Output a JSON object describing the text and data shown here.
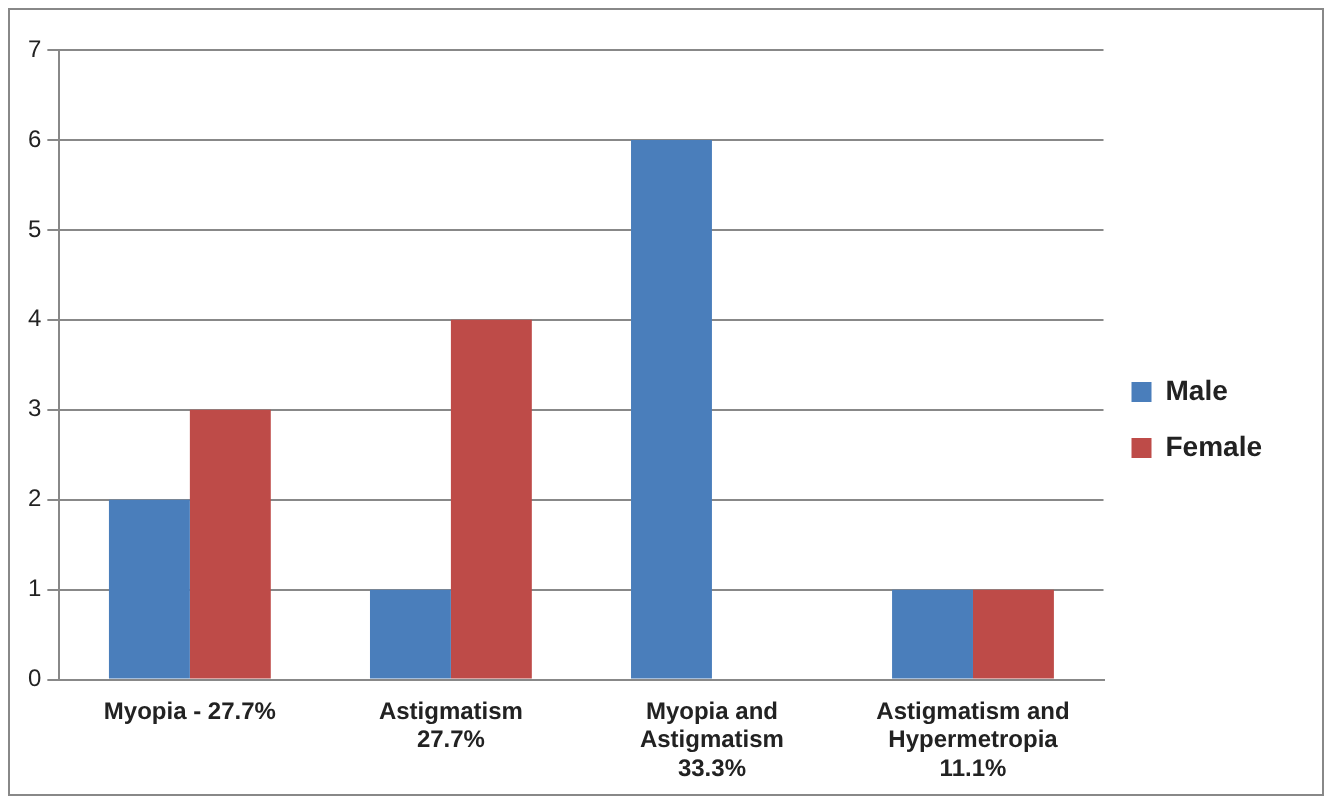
{
  "chart_data": {
    "type": "bar",
    "categories": [
      "Myopia - 27.7%",
      "Astigmatism\n27.7%",
      "Myopia and\nAstigmatism\n33.3%",
      "Astigmatism and\nHypermetropia\n11.1%"
    ],
    "series": [
      {
        "name": "Male",
        "color": "#4a7ebb",
        "values": [
          2,
          1,
          6,
          1
        ]
      },
      {
        "name": "Female",
        "color": "#be4b48",
        "values": [
          3,
          4,
          0,
          1
        ]
      }
    ],
    "ylim": [
      0,
      7
    ],
    "yticks": [
      0,
      1,
      2,
      3,
      4,
      5,
      6,
      7
    ],
    "grid": "y",
    "legend": "right"
  }
}
